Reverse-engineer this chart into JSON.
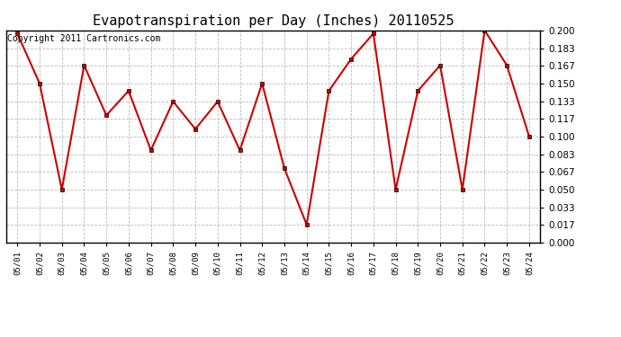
{
  "title": "Evapotranspiration per Day (Inches) 20110525",
  "copyright": "Copyright 2011 Cartronics.com",
  "dates": [
    "05/01",
    "05/02",
    "05/03",
    "05/04",
    "05/05",
    "05/06",
    "05/07",
    "05/08",
    "05/09",
    "05/10",
    "05/11",
    "05/12",
    "05/13",
    "05/14",
    "05/15",
    "05/16",
    "05/17",
    "05/18",
    "05/19",
    "05/20",
    "05/21",
    "05/22",
    "05/23",
    "05/24"
  ],
  "values": [
    0.197,
    0.15,
    0.05,
    0.167,
    0.12,
    0.143,
    0.087,
    0.133,
    0.107,
    0.133,
    0.087,
    0.15,
    0.07,
    0.017,
    0.143,
    0.173,
    0.197,
    0.05,
    0.143,
    0.167,
    0.05,
    0.2,
    0.167,
    0.1
  ],
  "line_color": "#cc0000",
  "marker_color": "#cc0000",
  "marker_edge_color": "#000000",
  "bg_color": "#ffffff",
  "grid_color": "#aaaaaa",
  "ylim": [
    0.0,
    0.2
  ],
  "yticks": [
    0.0,
    0.017,
    0.033,
    0.05,
    0.067,
    0.083,
    0.1,
    0.117,
    0.133,
    0.15,
    0.167,
    0.183,
    0.2
  ],
  "title_fontsize": 11,
  "copyright_fontsize": 7,
  "xtick_fontsize": 6.5,
  "ytick_fontsize": 7.5
}
